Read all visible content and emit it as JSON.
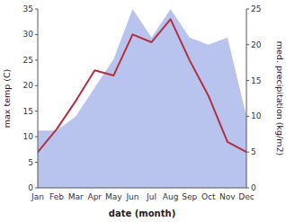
{
  "chart_data": {
    "type": "line",
    "xlabel": "date (month)",
    "ylabel": "max temp (C)",
    "y2label": "med. precipitation (kg/m2)",
    "categories": [
      "Jan",
      "Feb",
      "Mar",
      "Apr",
      "May",
      "Jun",
      "Jul",
      "Aug",
      "Sep",
      "Oct",
      "Nov",
      "Dec"
    ],
    "series": [
      {
        "type": "area",
        "axis": "y2",
        "color": "#b8c4ee",
        "values": [
          8,
          8,
          10,
          14,
          18,
          25,
          21,
          25,
          21,
          20,
          21,
          10
        ]
      },
      {
        "type": "line",
        "color": "#b03040",
        "values": [
          7,
          11.5,
          17,
          23,
          22,
          30,
          28.5,
          33,
          25,
          18,
          9,
          7
        ]
      }
    ],
    "ylim": [
      0,
      35
    ],
    "yticks": [
      0,
      5,
      10,
      15,
      20,
      25,
      30,
      35
    ],
    "y2lim": [
      0,
      25
    ],
    "y2ticks": [
      0,
      5,
      10,
      15,
      20,
      25
    ]
  }
}
